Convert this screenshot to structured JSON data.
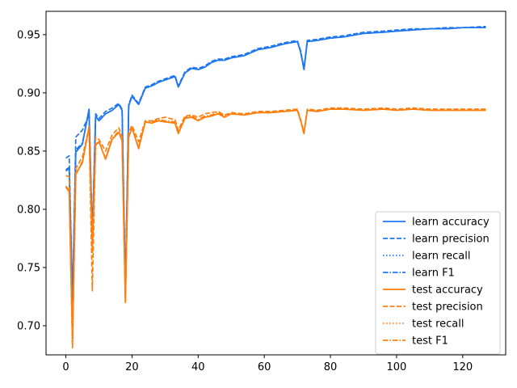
{
  "chart_data": {
    "type": "line",
    "title": "",
    "xlabel": "",
    "ylabel": "",
    "xlim": [
      -6,
      133
    ],
    "ylim": [
      0.675,
      0.97
    ],
    "x_ticks": [
      0,
      20,
      40,
      60,
      80,
      100,
      120
    ],
    "x_tick_labels": [
      "0",
      "20",
      "40",
      "60",
      "80",
      "100",
      "120"
    ],
    "y_ticks": [
      0.7,
      0.75,
      0.8,
      0.85,
      0.9,
      0.95
    ],
    "y_tick_labels": [
      "0.70",
      "0.75",
      "0.80",
      "0.85",
      "0.90",
      "0.95"
    ],
    "grid": false,
    "legend_position": "lower-right",
    "colors": {
      "learn": "#1f77f0",
      "test": "#ff7f0e"
    },
    "series": [
      {
        "name": "learn accuracy",
        "color": "#1f77f0",
        "style": "solid",
        "x": [
          0,
          1,
          2,
          3,
          5,
          7,
          8,
          9,
          10,
          12,
          14,
          16,
          17,
          18,
          19,
          20,
          22,
          24,
          26,
          28,
          30,
          33,
          34,
          36,
          38,
          40,
          42,
          44,
          46,
          48,
          50,
          54,
          58,
          62,
          66,
          70,
          71,
          72,
          73,
          76,
          80,
          84,
          90,
          96,
          100,
          105,
          110,
          115,
          120,
          127
        ],
        "y": [
          0.833,
          0.835,
          0.725,
          0.849,
          0.856,
          0.886,
          0.775,
          0.88,
          0.876,
          0.882,
          0.885,
          0.89,
          0.885,
          0.73,
          0.889,
          0.897,
          0.89,
          0.904,
          0.906,
          0.909,
          0.911,
          0.914,
          0.905,
          0.917,
          0.921,
          0.92,
          0.922,
          0.926,
          0.928,
          0.928,
          0.93,
          0.932,
          0.937,
          0.939,
          0.942,
          0.944,
          0.935,
          0.92,
          0.944,
          0.945,
          0.947,
          0.948,
          0.951,
          0.952,
          0.953,
          0.954,
          0.955,
          0.955,
          0.956,
          0.956
        ]
      },
      {
        "name": "learn precision",
        "color": "#1f77f0",
        "style": "dashed",
        "x": [
          0,
          1,
          2,
          3,
          5,
          7,
          8,
          9,
          10,
          12,
          14,
          16,
          17,
          18,
          19,
          20,
          22,
          24,
          26,
          28,
          30,
          33,
          34,
          36,
          38,
          40,
          42,
          44,
          46,
          48,
          50,
          54,
          58,
          62,
          66,
          70,
          71,
          72,
          73,
          76,
          80,
          84,
          90,
          96,
          100,
          105,
          110,
          115,
          120,
          127
        ],
        "y": [
          0.844,
          0.846,
          0.72,
          0.862,
          0.868,
          0.881,
          0.78,
          0.882,
          0.878,
          0.884,
          0.887,
          0.891,
          0.886,
          0.732,
          0.89,
          0.898,
          0.891,
          0.905,
          0.907,
          0.91,
          0.912,
          0.915,
          0.906,
          0.918,
          0.922,
          0.921,
          0.923,
          0.927,
          0.929,
          0.929,
          0.931,
          0.933,
          0.938,
          0.94,
          0.943,
          0.945,
          0.936,
          0.921,
          0.945,
          0.946,
          0.948,
          0.949,
          0.952,
          0.953,
          0.954,
          0.955,
          0.955,
          0.956,
          0.956,
          0.957
        ]
      },
      {
        "name": "learn recall",
        "color": "#1f77f0",
        "style": "dotted",
        "x": [
          0,
          1,
          2,
          3,
          5,
          7,
          8,
          9,
          10,
          12,
          14,
          16,
          17,
          18,
          19,
          20,
          22,
          24,
          26,
          28,
          30,
          33,
          34,
          36,
          38,
          40,
          42,
          44,
          46,
          48,
          50,
          54,
          58,
          62,
          66,
          70,
          71,
          72,
          73,
          76,
          80,
          84,
          90,
          96,
          100,
          105,
          110,
          115,
          120,
          127
        ],
        "y": [
          0.833,
          0.835,
          0.725,
          0.849,
          0.856,
          0.886,
          0.775,
          0.88,
          0.876,
          0.882,
          0.885,
          0.89,
          0.885,
          0.73,
          0.889,
          0.897,
          0.89,
          0.904,
          0.906,
          0.909,
          0.911,
          0.914,
          0.905,
          0.917,
          0.921,
          0.92,
          0.922,
          0.926,
          0.928,
          0.928,
          0.93,
          0.932,
          0.937,
          0.939,
          0.942,
          0.944,
          0.935,
          0.92,
          0.944,
          0.945,
          0.947,
          0.948,
          0.951,
          0.952,
          0.953,
          0.954,
          0.955,
          0.955,
          0.956,
          0.956
        ]
      },
      {
        "name": "learn F1",
        "color": "#1f77f0",
        "style": "dashdot",
        "x": [
          0,
          1,
          2,
          3,
          5,
          7,
          8,
          9,
          10,
          12,
          14,
          16,
          17,
          18,
          19,
          20,
          22,
          24,
          26,
          28,
          30,
          33,
          34,
          36,
          38,
          40,
          42,
          44,
          46,
          48,
          50,
          54,
          58,
          62,
          66,
          70,
          71,
          72,
          73,
          76,
          80,
          84,
          90,
          96,
          100,
          105,
          110,
          115,
          120,
          127
        ],
        "y": [
          0.834,
          0.836,
          0.7,
          0.851,
          0.857,
          0.885,
          0.77,
          0.88,
          0.876,
          0.882,
          0.885,
          0.89,
          0.885,
          0.728,
          0.889,
          0.897,
          0.89,
          0.904,
          0.906,
          0.909,
          0.911,
          0.914,
          0.905,
          0.917,
          0.921,
          0.92,
          0.922,
          0.926,
          0.928,
          0.928,
          0.93,
          0.932,
          0.937,
          0.939,
          0.942,
          0.944,
          0.935,
          0.92,
          0.944,
          0.945,
          0.947,
          0.948,
          0.951,
          0.952,
          0.953,
          0.954,
          0.955,
          0.955,
          0.956,
          0.956
        ]
      },
      {
        "name": "test accuracy",
        "color": "#ff7f0e",
        "style": "solid",
        "x": [
          0,
          1,
          2,
          3,
          5,
          7,
          8,
          9,
          10,
          12,
          14,
          16,
          17,
          18,
          19,
          20,
          22,
          24,
          26,
          28,
          30,
          33,
          34,
          36,
          38,
          40,
          42,
          44,
          46,
          48,
          50,
          54,
          58,
          62,
          66,
          70,
          71,
          72,
          73,
          76,
          80,
          84,
          90,
          96,
          100,
          105,
          110,
          115,
          120,
          127
        ],
        "y": [
          0.819,
          0.815,
          0.688,
          0.83,
          0.84,
          0.871,
          0.77,
          0.855,
          0.858,
          0.843,
          0.86,
          0.866,
          0.859,
          0.72,
          0.862,
          0.87,
          0.852,
          0.875,
          0.874,
          0.876,
          0.875,
          0.874,
          0.865,
          0.878,
          0.879,
          0.876,
          0.879,
          0.88,
          0.882,
          0.879,
          0.882,
          0.881,
          0.883,
          0.883,
          0.884,
          0.885,
          0.876,
          0.865,
          0.885,
          0.884,
          0.886,
          0.886,
          0.885,
          0.886,
          0.885,
          0.886,
          0.885,
          0.885,
          0.885,
          0.885
        ]
      },
      {
        "name": "test precision",
        "color": "#ff7f0e",
        "style": "dashed",
        "x": [
          0,
          1,
          2,
          3,
          5,
          7,
          8,
          9,
          10,
          12,
          14,
          16,
          17,
          18,
          19,
          20,
          22,
          24,
          26,
          28,
          30,
          33,
          34,
          36,
          38,
          40,
          42,
          44,
          46,
          48,
          50,
          54,
          58,
          62,
          66,
          70,
          71,
          72,
          73,
          76,
          80,
          84,
          90,
          96,
          100,
          105,
          110,
          115,
          120,
          127
        ],
        "y": [
          0.829,
          0.828,
          0.685,
          0.835,
          0.845,
          0.87,
          0.73,
          0.862,
          0.86,
          0.85,
          0.864,
          0.87,
          0.862,
          0.722,
          0.866,
          0.872,
          0.858,
          0.876,
          0.876,
          0.878,
          0.879,
          0.877,
          0.868,
          0.88,
          0.881,
          0.879,
          0.882,
          0.883,
          0.884,
          0.881,
          0.883,
          0.882,
          0.884,
          0.884,
          0.885,
          0.886,
          0.877,
          0.866,
          0.886,
          0.885,
          0.887,
          0.887,
          0.886,
          0.887,
          0.886,
          0.887,
          0.886,
          0.886,
          0.886,
          0.886
        ]
      },
      {
        "name": "test recall",
        "color": "#ff7f0e",
        "style": "dotted",
        "x": [
          0,
          1,
          2,
          3,
          5,
          7,
          8,
          9,
          10,
          12,
          14,
          16,
          17,
          18,
          19,
          20,
          22,
          24,
          26,
          28,
          30,
          33,
          34,
          36,
          38,
          40,
          42,
          44,
          46,
          48,
          50,
          54,
          58,
          62,
          66,
          70,
          71,
          72,
          73,
          76,
          80,
          84,
          90,
          96,
          100,
          105,
          110,
          115,
          120,
          127
        ],
        "y": [
          0.819,
          0.815,
          0.688,
          0.83,
          0.84,
          0.871,
          0.77,
          0.855,
          0.858,
          0.843,
          0.86,
          0.866,
          0.859,
          0.72,
          0.862,
          0.87,
          0.852,
          0.875,
          0.874,
          0.876,
          0.875,
          0.874,
          0.865,
          0.878,
          0.879,
          0.876,
          0.879,
          0.88,
          0.882,
          0.879,
          0.882,
          0.881,
          0.883,
          0.883,
          0.884,
          0.885,
          0.876,
          0.865,
          0.885,
          0.884,
          0.886,
          0.886,
          0.885,
          0.886,
          0.885,
          0.886,
          0.885,
          0.885,
          0.885,
          0.885
        ]
      },
      {
        "name": "test F1",
        "color": "#ff7f0e",
        "style": "dashdot",
        "x": [
          0,
          1,
          2,
          3,
          5,
          7,
          8,
          9,
          10,
          12,
          14,
          16,
          17,
          18,
          19,
          20,
          22,
          24,
          26,
          28,
          30,
          33,
          34,
          36,
          38,
          40,
          42,
          44,
          46,
          48,
          50,
          54,
          58,
          62,
          66,
          70,
          71,
          72,
          73,
          76,
          80,
          84,
          90,
          96,
          100,
          105,
          110,
          115,
          120,
          127
        ],
        "y": [
          0.82,
          0.816,
          0.68,
          0.831,
          0.841,
          0.87,
          0.762,
          0.856,
          0.858,
          0.844,
          0.861,
          0.867,
          0.86,
          0.72,
          0.863,
          0.87,
          0.853,
          0.875,
          0.875,
          0.877,
          0.876,
          0.875,
          0.866,
          0.879,
          0.88,
          0.877,
          0.88,
          0.881,
          0.883,
          0.88,
          0.882,
          0.881,
          0.883,
          0.883,
          0.884,
          0.885,
          0.876,
          0.865,
          0.885,
          0.884,
          0.886,
          0.886,
          0.885,
          0.886,
          0.885,
          0.886,
          0.885,
          0.885,
          0.885,
          0.885
        ]
      }
    ]
  }
}
